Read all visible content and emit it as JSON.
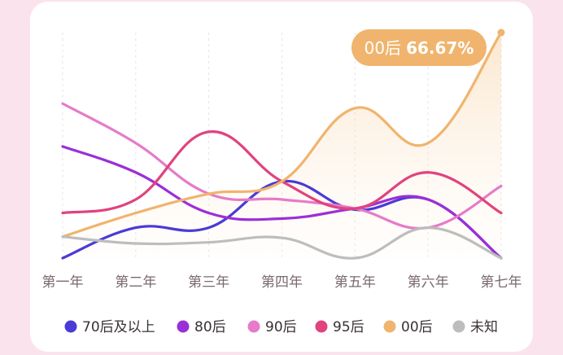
{
  "chart_data": {
    "type": "line",
    "title": "",
    "xlabel": "",
    "ylabel": "",
    "categories": [
      "第一年",
      "第二年",
      "第三年",
      "第四年",
      "第五年",
      "第六年",
      "第七年"
    ],
    "ylim": [
      0,
      100
    ],
    "grid": "vertical-dashed",
    "legend_position": "bottom",
    "series": [
      {
        "name": "70后及以上",
        "color": "#4a3ad6",
        "values": [
          0,
          13.5,
          13.5,
          34,
          21.5,
          26,
          0
        ]
      },
      {
        "name": "80后",
        "color": "#9b2fd7",
        "values": [
          49.5,
          38,
          20,
          17.5,
          22,
          26,
          0
        ]
      },
      {
        "name": "90后",
        "color": "#e67bc9",
        "values": [
          68.5,
          51,
          28.5,
          26,
          22,
          13.5,
          32
        ]
      },
      {
        "name": "95后",
        "color": "#e0437e",
        "values": [
          20,
          26,
          56,
          34,
          22,
          38,
          20
        ]
      },
      {
        "name": "00后",
        "color": "#f0b46e",
        "values": [
          9.5,
          20,
          28.5,
          34,
          66.5,
          51,
          100
        ],
        "fill": true
      },
      {
        "name": "未知",
        "color": "#bdbdbd",
        "values": [
          9.5,
          6.5,
          7,
          9,
          0,
          13.5,
          0
        ]
      }
    ],
    "annotation": {
      "series": "00后",
      "label": "00后",
      "value": "66.67%"
    }
  }
}
